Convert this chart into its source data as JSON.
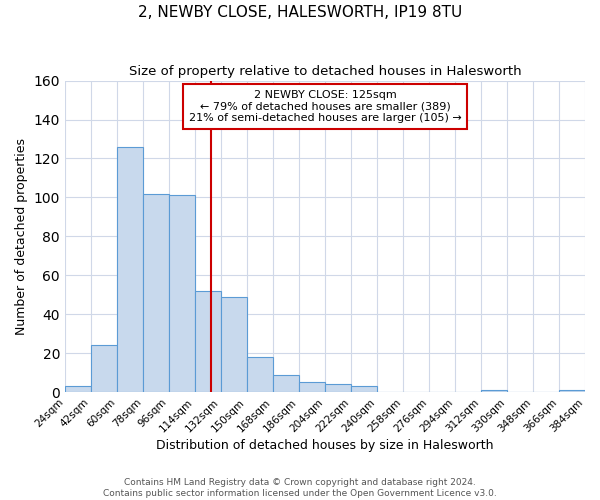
{
  "title": "2, NEWBY CLOSE, HALESWORTH, IP19 8TU",
  "subtitle": "Size of property relative to detached houses in Halesworth",
  "xlabel": "Distribution of detached houses by size in Halesworth",
  "ylabel": "Number of detached properties",
  "bin_edges": [
    24,
    42,
    60,
    78,
    96,
    114,
    132,
    150,
    168,
    186,
    204,
    222,
    240,
    258,
    276,
    294,
    312,
    330,
    348,
    366,
    384
  ],
  "bar_heights": [
    3,
    24,
    126,
    102,
    101,
    52,
    49,
    18,
    9,
    5,
    4,
    3,
    0,
    0,
    0,
    0,
    1,
    0,
    0,
    1
  ],
  "bar_facecolor": "#c8d9ed",
  "bar_edgecolor": "#5b9bd5",
  "property_value": 125,
  "vline_color": "#cc0000",
  "annotation_line1": "2 NEWBY CLOSE: 125sqm",
  "annotation_line2": "← 79% of detached houses are smaller (389)",
  "annotation_line3": "21% of semi-detached houses are larger (105) →",
  "annotation_box_edgecolor": "#cc0000",
  "ylim": [
    0,
    160
  ],
  "yticks": [
    0,
    20,
    40,
    60,
    80,
    100,
    120,
    140,
    160
  ],
  "footer_line1": "Contains HM Land Registry data © Crown copyright and database right 2024.",
  "footer_line2": "Contains public sector information licensed under the Open Government Licence v3.0.",
  "background_color": "#ffffff",
  "grid_color": "#d0d8e8",
  "tick_label_fontsize": 7.5,
  "title_fontsize": 11,
  "subtitle_fontsize": 9.5
}
